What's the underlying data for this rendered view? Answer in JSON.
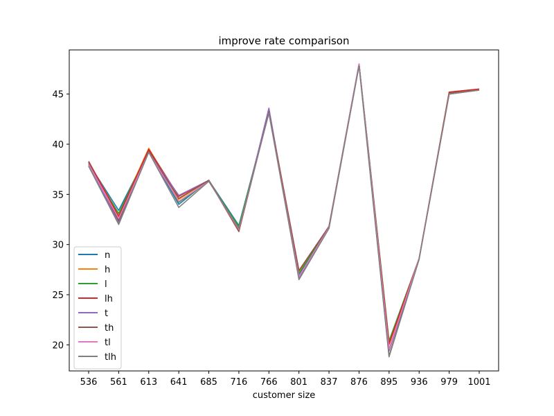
{
  "chart_data": {
    "type": "line",
    "title": "improve rate comparison",
    "xlabel": "customer size",
    "ylabel": "",
    "categories": [
      "536",
      "561",
      "613",
      "641",
      "685",
      "716",
      "766",
      "801",
      "837",
      "876",
      "895",
      "936",
      "979",
      "1001"
    ],
    "yticks": [
      20,
      25,
      30,
      35,
      40,
      45
    ],
    "ylim": [
      17.4,
      49.4
    ],
    "grid": false,
    "legend_position": "lower-left",
    "series": [
      {
        "name": "n",
        "color": "#1f77b4",
        "values": [
          38.1,
          33.4,
          39.3,
          34.0,
          36.4,
          31.9,
          43.2,
          27.0,
          31.8,
          48.0,
          20.2,
          28.6,
          45.1,
          45.4
        ]
      },
      {
        "name": "h",
        "color": "#ff7f0e",
        "values": [
          38.2,
          33.0,
          39.6,
          34.5,
          36.4,
          31.6,
          43.4,
          27.3,
          31.7,
          47.9,
          20.0,
          28.6,
          45.2,
          45.5
        ]
      },
      {
        "name": "l",
        "color": "#2ca02c",
        "values": [
          38.0,
          33.1,
          39.4,
          34.2,
          36.3,
          31.8,
          43.3,
          27.1,
          31.8,
          48.0,
          20.4,
          28.6,
          45.1,
          45.4
        ]
      },
      {
        "name": "lh",
        "color": "#d62728",
        "values": [
          38.3,
          32.8,
          39.5,
          34.8,
          36.4,
          31.3,
          43.3,
          27.4,
          31.8,
          47.9,
          20.1,
          28.6,
          45.2,
          45.5
        ]
      },
      {
        "name": "t",
        "color": "#9467bd",
        "values": [
          37.9,
          32.2,
          39.2,
          34.9,
          36.4,
          31.4,
          43.6,
          26.6,
          31.7,
          48.0,
          19.4,
          28.6,
          45.0,
          45.4
        ]
      },
      {
        "name": "th",
        "color": "#8c564b",
        "values": [
          38.2,
          32.4,
          39.3,
          34.6,
          36.4,
          31.3,
          43.2,
          27.4,
          31.8,
          48.0,
          18.9,
          28.6,
          45.1,
          45.4
        ]
      },
      {
        "name": "tl",
        "color": "#e377c2",
        "values": [
          38.0,
          32.6,
          39.2,
          34.3,
          36.3,
          31.5,
          43.1,
          26.8,
          31.7,
          48.0,
          19.6,
          28.6,
          45.0,
          45.4
        ]
      },
      {
        "name": "tlh",
        "color": "#7f7f7f",
        "values": [
          37.8,
          32.0,
          39.2,
          33.7,
          36.3,
          31.6,
          43.1,
          26.5,
          31.6,
          47.8,
          18.8,
          28.5,
          45.0,
          45.4
        ]
      }
    ]
  }
}
